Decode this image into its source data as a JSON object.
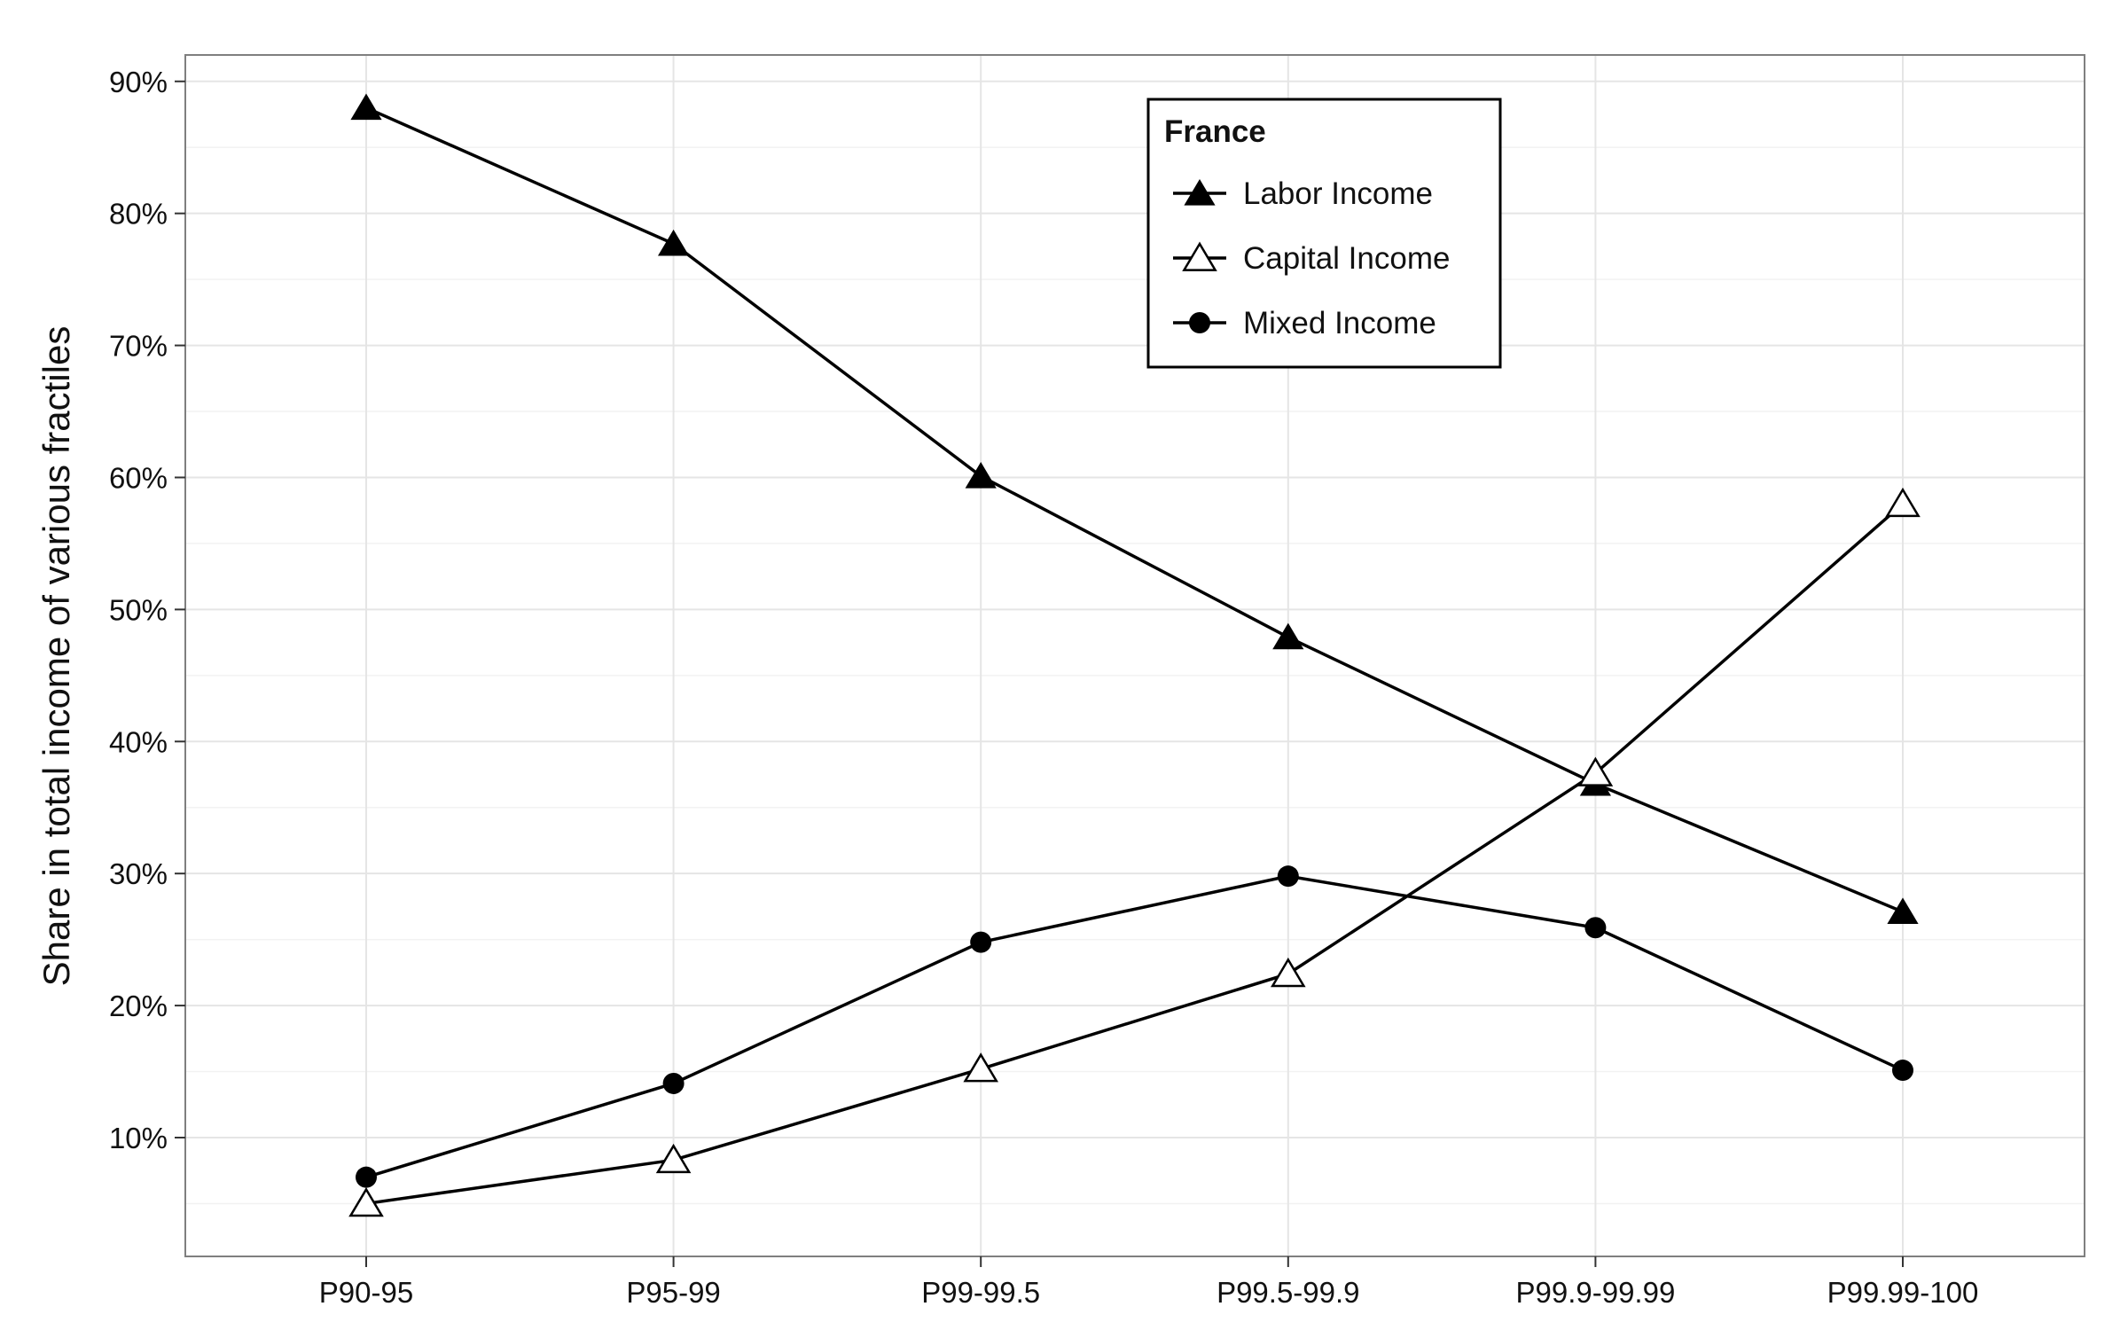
{
  "chart_data": {
    "type": "line",
    "title": "",
    "xlabel": "",
    "ylabel": "Share in total income of various fractiles",
    "categories": [
      "P90-95",
      "P95-99",
      "P99-99.5",
      "P99.5-99.9",
      "P99.9-99.99",
      "P99.99-100"
    ],
    "y_ticks": [
      10,
      20,
      30,
      40,
      50,
      60,
      70,
      80,
      90
    ],
    "y_tick_labels": [
      "10%",
      "20%",
      "30%",
      "40%",
      "50%",
      "60%",
      "70%",
      "80%",
      "90%"
    ],
    "ylim": [
      1,
      92
    ],
    "grid": true,
    "legend": {
      "title": "France",
      "position": "top-center"
    },
    "series": [
      {
        "name": "Labor Income",
        "marker": "filled-triangle",
        "values": [
          88.0,
          77.7,
          60.1,
          47.9,
          36.8,
          27.1
        ]
      },
      {
        "name": "Capital Income",
        "marker": "open-triangle",
        "values": [
          5.0,
          8.3,
          15.2,
          22.4,
          37.6,
          58.0
        ]
      },
      {
        "name": "Mixed Income",
        "marker": "filled-circle",
        "values": [
          7.0,
          14.1,
          24.8,
          29.8,
          25.9,
          15.1
        ]
      }
    ],
    "colors": {
      "line": "#000000",
      "grid": "#e5e5e5",
      "panel_border": "#7f7f7f"
    }
  }
}
